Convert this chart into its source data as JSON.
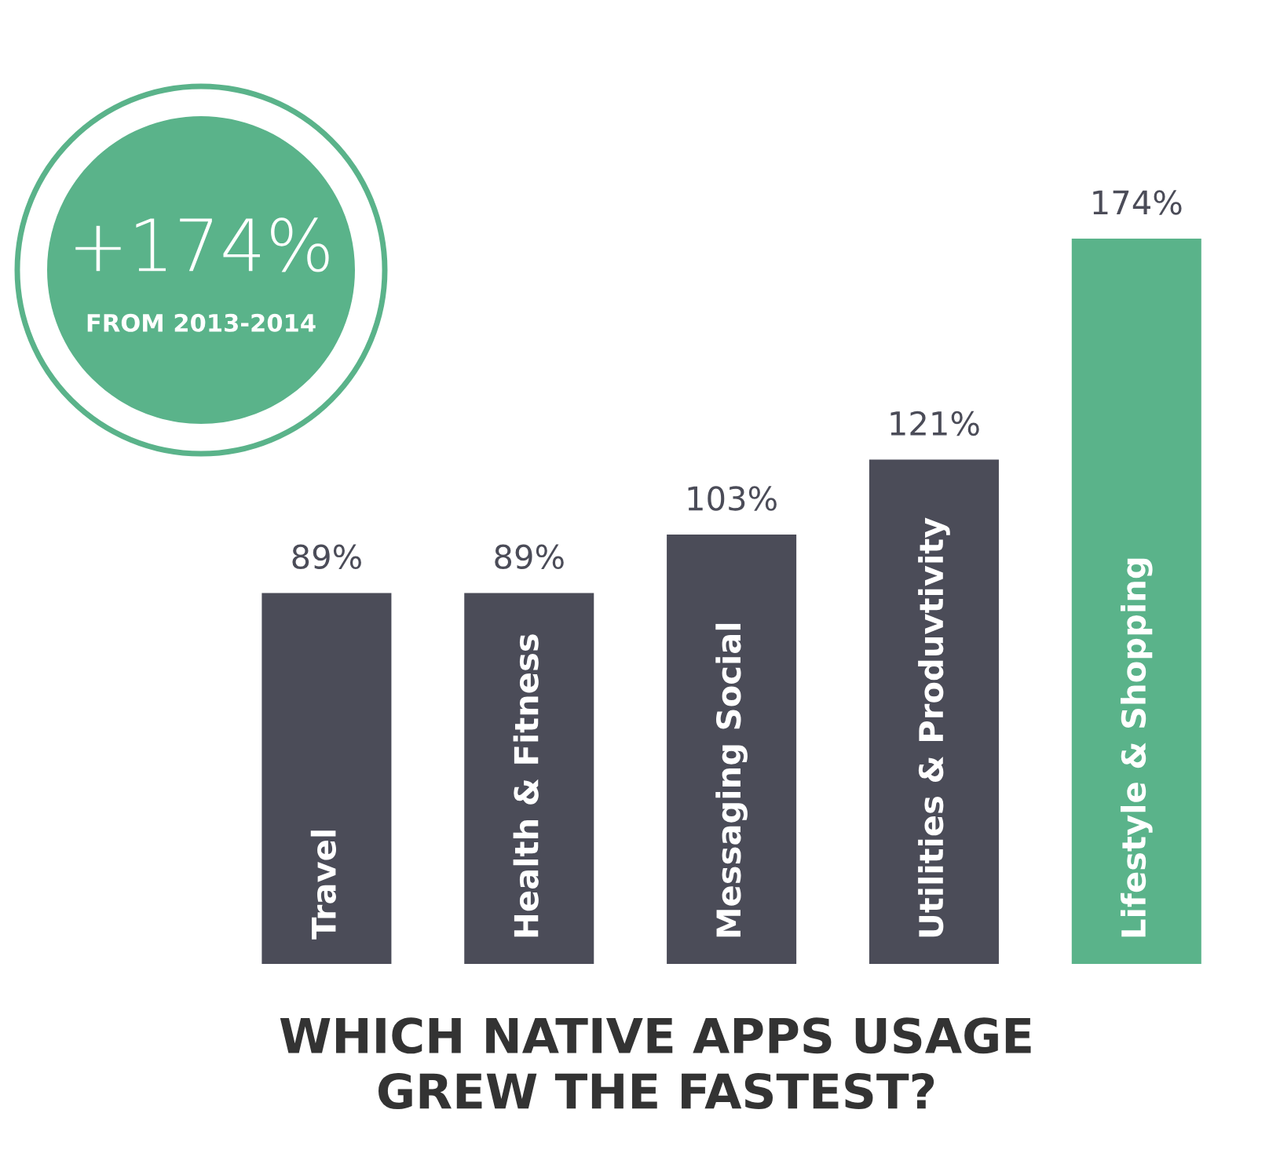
{
  "chart_data": {
    "type": "bar",
    "title": "WHICH NATIVE APPS USAGE\nGREW THE FASTEST?",
    "categories": [
      "Travel",
      "Health & Fitness",
      "Messaging Social",
      "Utilities & Produvtivity",
      "Lifestyle & Shopping"
    ],
    "values": [
      89,
      89,
      103,
      121,
      174
    ],
    "colors": [
      "#4b4c58",
      "#4b4c58",
      "#4b4c58",
      "#4b4c58",
      "#5ab38a"
    ],
    "data_labels": true,
    "value_labels": [
      "89%",
      "89%",
      "103%",
      "121%",
      "174%"
    ],
    "annotations": [
      "+174%",
      "FROM 2013-2014"
    ],
    "legend": false
  }
}
